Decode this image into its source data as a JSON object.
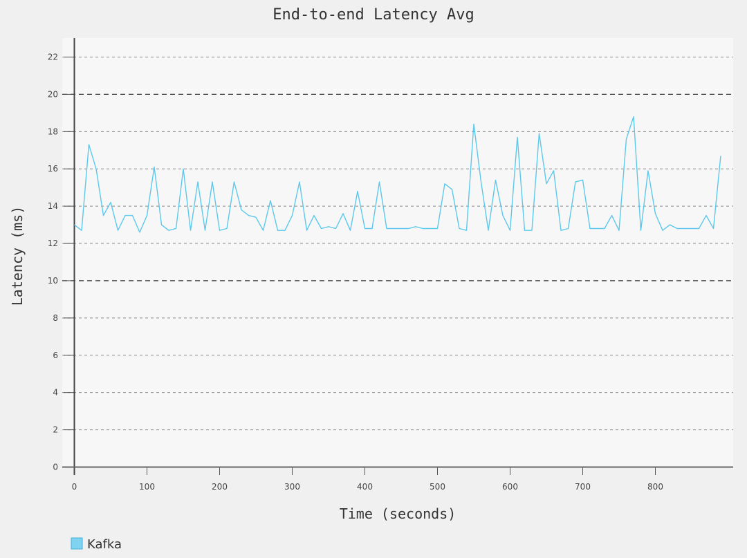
{
  "chart_data": {
    "type": "line",
    "title": "End-to-end Latency Avg",
    "xlabel": "Time (seconds)",
    "ylabel": "Latency (ms)",
    "xlim": [
      0,
      905
    ],
    "ylim": [
      0,
      23
    ],
    "x_ticks": [
      0,
      100,
      200,
      300,
      400,
      500,
      600,
      700,
      800
    ],
    "y_ticks": [
      0,
      2,
      4,
      6,
      8,
      10,
      12,
      14,
      16,
      18,
      20,
      22
    ],
    "grid": true,
    "legend": "bottom-left",
    "series": [
      {
        "name": "Kafka",
        "color": "#5bc8ec",
        "x": [
          0,
          10,
          20,
          30,
          40,
          50,
          60,
          70,
          80,
          90,
          100,
          110,
          120,
          130,
          140,
          150,
          160,
          170,
          180,
          190,
          200,
          210,
          220,
          230,
          240,
          250,
          260,
          270,
          280,
          290,
          300,
          310,
          320,
          330,
          340,
          350,
          360,
          370,
          380,
          390,
          400,
          410,
          420,
          430,
          440,
          450,
          460,
          470,
          480,
          490,
          500,
          510,
          520,
          530,
          540,
          550,
          560,
          570,
          580,
          590,
          600,
          610,
          620,
          630,
          640,
          650,
          660,
          670,
          680,
          690,
          700,
          710,
          720,
          730,
          740,
          750,
          760,
          770,
          780,
          790,
          800,
          810,
          820,
          830,
          840,
          850,
          860,
          870,
          880,
          890
        ],
        "values": [
          13.0,
          12.7,
          17.3,
          16.0,
          13.5,
          14.2,
          12.7,
          13.5,
          13.5,
          12.6,
          13.5,
          16.1,
          13.0,
          12.7,
          12.8,
          16.0,
          12.7,
          15.3,
          12.7,
          15.3,
          12.7,
          12.8,
          15.3,
          13.8,
          13.5,
          13.4,
          12.7,
          14.3,
          12.7,
          12.7,
          13.5,
          15.3,
          12.7,
          13.5,
          12.8,
          12.9,
          12.8,
          13.6,
          12.7,
          14.8,
          12.8,
          12.8,
          15.3,
          12.8,
          12.8,
          12.8,
          12.8,
          12.9,
          12.8,
          12.8,
          12.8,
          15.2,
          14.9,
          12.8,
          12.7,
          18.4,
          15.3,
          12.7,
          15.4,
          13.5,
          12.7,
          17.7,
          12.7,
          12.7,
          17.9,
          15.2,
          15.9,
          12.7,
          12.8,
          15.3,
          15.4,
          12.8,
          12.8,
          12.8,
          13.5,
          12.7,
          17.6,
          18.8,
          12.7,
          15.9,
          13.6,
          12.7,
          13.0,
          12.8,
          12.8,
          12.8,
          12.8,
          13.5,
          12.8,
          16.7
        ]
      }
    ]
  }
}
